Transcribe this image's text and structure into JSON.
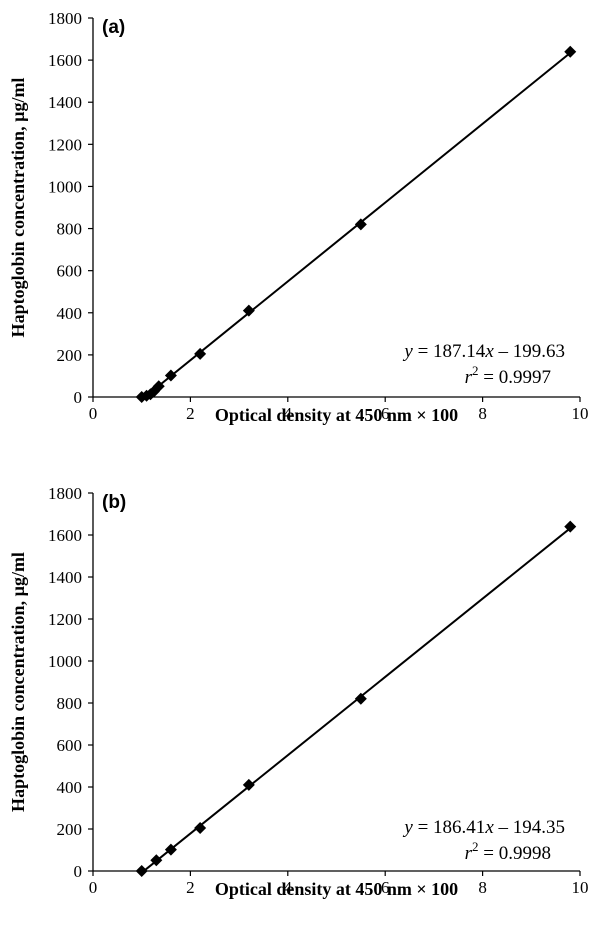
{
  "chart_data": [
    {
      "type": "scatter",
      "panel_label": "(a)",
      "xlabel": "Optical density at 450 nm × 100",
      "ylabel": "Haptoglobin concentration, µg/ml",
      "xlim": [
        0,
        10
      ],
      "ylim": [
        0,
        1800
      ],
      "xticks": [
        "0",
        "2",
        "4",
        "6",
        "8",
        "10"
      ],
      "yticks": [
        "0",
        "200",
        "400",
        "600",
        "800",
        "1000",
        "1200",
        "1400",
        "1600",
        "1800"
      ],
      "grid": false,
      "marker": "diamond",
      "points": [
        {
          "x": 1.0,
          "y": 0
        },
        {
          "x": 1.1,
          "y": 6
        },
        {
          "x": 1.18,
          "y": 13
        },
        {
          "x": 1.25,
          "y": 26
        },
        {
          "x": 1.35,
          "y": 51
        },
        {
          "x": 1.6,
          "y": 102
        },
        {
          "x": 2.2,
          "y": 205
        },
        {
          "x": 3.2,
          "y": 410
        },
        {
          "x": 5.5,
          "y": 820
        },
        {
          "x": 9.8,
          "y": 1640
        }
      ],
      "fit": {
        "slope": 187.14,
        "intercept": -199.63,
        "x_start": 1.0,
        "x_end": 9.8
      },
      "equation_text": {
        "y": "y",
        "eq1": " = 187.14",
        "x": "x",
        "eq2": " – 199.63",
        "r": "r",
        "sup": "2",
        "r2": " = 0.9997"
      }
    },
    {
      "type": "scatter",
      "panel_label": "(b)",
      "xlabel": "Optical density at 450 nm × 100",
      "ylabel": "Haptoglobin concentration, µg/ml",
      "xlim": [
        0,
        10
      ],
      "ylim": [
        0,
        1800
      ],
      "xticks": [
        "0",
        "2",
        "4",
        "6",
        "8",
        "10"
      ],
      "yticks": [
        "0",
        "200",
        "400",
        "600",
        "800",
        "1000",
        "1200",
        "1400",
        "1600",
        "1800"
      ],
      "grid": false,
      "marker": "diamond",
      "points": [
        {
          "x": 1.0,
          "y": 0
        },
        {
          "x": 1.3,
          "y": 51
        },
        {
          "x": 1.6,
          "y": 102
        },
        {
          "x": 2.2,
          "y": 205
        },
        {
          "x": 3.2,
          "y": 410
        },
        {
          "x": 5.5,
          "y": 820
        },
        {
          "x": 9.8,
          "y": 1640
        }
      ],
      "fit": {
        "slope": 186.41,
        "intercept": -194.35,
        "x_start": 1.0,
        "x_end": 9.8
      },
      "equation_text": {
        "y": "y",
        "eq1": " = 186.41",
        "x": "x",
        "eq2": " – 194.35",
        "r": "r",
        "sup": "2",
        "r2": " = 0.9998"
      }
    }
  ]
}
